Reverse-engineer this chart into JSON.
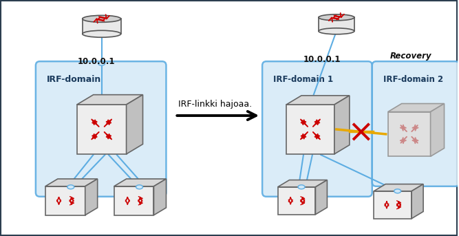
{
  "bg_color": "#ffffff",
  "border_line_color": "#2c3e50",
  "fig_width": 6.67,
  "fig_height": 3.43,
  "arrow_text": "IRF-linkki hajoaa.",
  "left_domain_label": "IRF-domain",
  "right_domain1_label": "IRF-domain 1",
  "right_domain2_label": "IRF-domain 2",
  "ip_label": "10.0.0.1",
  "recovery_label": "Recovery",
  "domain_bg_color": "#d6eaf8",
  "domain_border_color": "#5dade2",
  "arrow_color": "#cc0000",
  "link_color": "#5dade2",
  "cross_color": "#cc0000",
  "cross_line_color": "#e8a800",
  "router_body": "#e8e8e8",
  "router_top": "#d0d0d0",
  "router_border": "#555555",
  "sw_face": "#eeeeee",
  "sw_top": "#d8d8d8",
  "sw_side": "#c0c0c0",
  "sw_border": "#666666",
  "sw_face_faded": "#e0e0e0",
  "sw_top_faded": "#d0d0d0",
  "sw_side_faded": "#c8c8c8",
  "sw_border_faded": "#999999"
}
